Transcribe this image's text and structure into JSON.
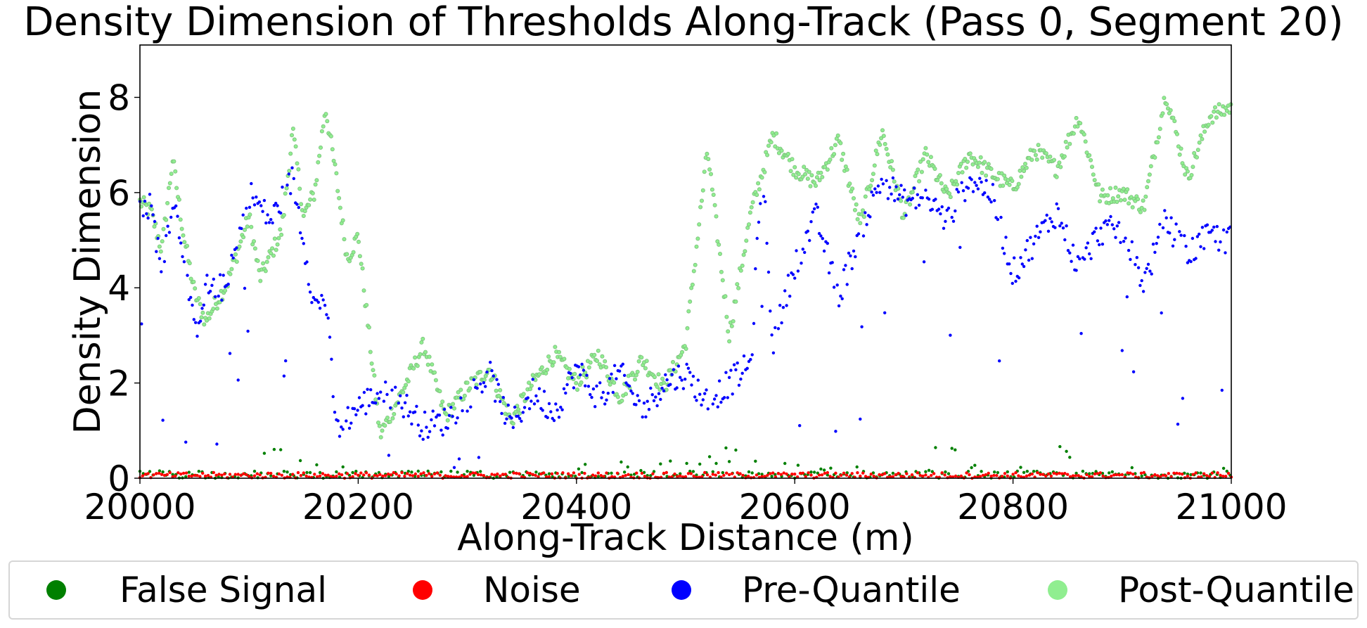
{
  "chart_data": {
    "type": "scatter",
    "title": "Density Dimension of Thresholds Along-Track (Pass 0, Segment 20)",
    "xlabel": "Along-Track Distance (m)",
    "ylabel": "Density Dimension",
    "xlim": [
      20000,
      21000
    ],
    "ylim": [
      0,
      9.1
    ],
    "xticks": [
      20000,
      20200,
      20400,
      20600,
      20800,
      21000
    ],
    "xtick_labels": [
      "20000",
      "20200",
      "20400",
      "20600",
      "20800",
      "21000"
    ],
    "yticks": [
      0,
      2,
      4,
      6,
      8
    ],
    "ytick_labels": [
      "0",
      "2",
      "4",
      "6",
      "8"
    ],
    "grid": false,
    "legend_position": "bottom",
    "series": [
      {
        "name": "False Signal",
        "color": "#008000",
        "trend": [
          [
            20000,
            0.9
          ],
          [
            20010,
            0.6
          ],
          [
            20050,
            0.2
          ],
          [
            20100,
            0.05
          ],
          [
            20120,
            0.9
          ],
          [
            20140,
            0.7
          ],
          [
            20200,
            0.1
          ],
          [
            20300,
            0.05
          ],
          [
            20400,
            0.3
          ],
          [
            20420,
            0.8
          ],
          [
            20450,
            0.2
          ],
          [
            20540,
            0.7
          ],
          [
            20560,
            0.4
          ],
          [
            20600,
            0.3
          ],
          [
            20660,
            0.3
          ],
          [
            20700,
            0.2
          ],
          [
            20740,
            0.9
          ],
          [
            20760,
            0.3
          ],
          [
            20800,
            0.2
          ],
          [
            20850,
            0.9
          ],
          [
            20900,
            0.3
          ],
          [
            20950,
            0.2
          ],
          [
            20990,
            0.9
          ],
          [
            21000,
            0.6
          ]
        ]
      },
      {
        "name": "Noise",
        "color": "#ff0000",
        "trend": [
          [
            20000,
            0.05
          ],
          [
            20500,
            0.05
          ],
          [
            21000,
            0.05
          ]
        ]
      },
      {
        "name": "Pre-Quantile",
        "color": "#0000ff",
        "trend": [
          [
            20000,
            5.6
          ],
          [
            20010,
            5.7
          ],
          [
            20020,
            4.4
          ],
          [
            20030,
            5.9
          ],
          [
            20040,
            4.8
          ],
          [
            20050,
            3.0
          ],
          [
            20060,
            4.0
          ],
          [
            20080,
            4.0
          ],
          [
            20100,
            6.0
          ],
          [
            20120,
            5.4
          ],
          [
            20140,
            6.3
          ],
          [
            20150,
            5.0
          ],
          [
            20160,
            3.6
          ],
          [
            20170,
            3.8
          ],
          [
            20180,
            1.0
          ],
          [
            20200,
            1.5
          ],
          [
            20220,
            1.8
          ],
          [
            20240,
            1.6
          ],
          [
            20260,
            1.1
          ],
          [
            20280,
            1.2
          ],
          [
            20300,
            1.7
          ],
          [
            20320,
            2.2
          ],
          [
            20340,
            1.1
          ],
          [
            20360,
            1.8
          ],
          [
            20380,
            1.4
          ],
          [
            20400,
            2.3
          ],
          [
            20420,
            1.7
          ],
          [
            20440,
            2.2
          ],
          [
            20460,
            1.4
          ],
          [
            20480,
            2.0
          ],
          [
            20500,
            2.2
          ],
          [
            20520,
            1.6
          ],
          [
            20540,
            2.0
          ],
          [
            20560,
            2.4
          ],
          [
            20570,
            6.7
          ],
          [
            20580,
            2.8
          ],
          [
            20600,
            4.5
          ],
          [
            20620,
            5.5
          ],
          [
            20640,
            3.8
          ],
          [
            20660,
            5.2
          ],
          [
            20680,
            6.3
          ],
          [
            20700,
            5.8
          ],
          [
            20720,
            5.9
          ],
          [
            20740,
            5.4
          ],
          [
            20760,
            6.3
          ],
          [
            20780,
            6.0
          ],
          [
            20800,
            4.3
          ],
          [
            20820,
            5.0
          ],
          [
            20840,
            5.6
          ],
          [
            20860,
            4.4
          ],
          [
            20880,
            5.2
          ],
          [
            20900,
            5.2
          ],
          [
            20920,
            4.1
          ],
          [
            20940,
            5.4
          ],
          [
            20960,
            4.7
          ],
          [
            20980,
            5.1
          ],
          [
            21000,
            5.0
          ]
        ]
      },
      {
        "name": "Post-Quantile",
        "color": "#90ee90",
        "trend": [
          [
            20000,
            5.8
          ],
          [
            20010,
            5.6
          ],
          [
            20020,
            4.8
          ],
          [
            20030,
            6.7
          ],
          [
            20040,
            5.1
          ],
          [
            20050,
            3.9
          ],
          [
            20060,
            3.3
          ],
          [
            20080,
            4.1
          ],
          [
            20100,
            5.5
          ],
          [
            20110,
            4.2
          ],
          [
            20130,
            5.2
          ],
          [
            20140,
            7.3
          ],
          [
            20150,
            5.5
          ],
          [
            20160,
            6.0
          ],
          [
            20170,
            7.8
          ],
          [
            20180,
            6.3
          ],
          [
            20190,
            4.6
          ],
          [
            20200,
            5.1
          ],
          [
            20220,
            0.9
          ],
          [
            20240,
            1.8
          ],
          [
            20260,
            2.8
          ],
          [
            20280,
            1.3
          ],
          [
            20300,
            1.9
          ],
          [
            20320,
            2.3
          ],
          [
            20340,
            1.2
          ],
          [
            20360,
            2.0
          ],
          [
            20380,
            2.6
          ],
          [
            20400,
            2.0
          ],
          [
            20420,
            2.6
          ],
          [
            20440,
            1.7
          ],
          [
            20460,
            2.5
          ],
          [
            20480,
            1.9
          ],
          [
            20500,
            2.8
          ],
          [
            20520,
            6.9
          ],
          [
            20540,
            3.0
          ],
          [
            20560,
            5.6
          ],
          [
            20580,
            7.2
          ],
          [
            20600,
            6.5
          ],
          [
            20620,
            6.2
          ],
          [
            20640,
            7.1
          ],
          [
            20660,
            5.3
          ],
          [
            20680,
            7.3
          ],
          [
            20700,
            5.5
          ],
          [
            20720,
            6.8
          ],
          [
            20740,
            5.9
          ],
          [
            20760,
            6.8
          ],
          [
            20780,
            6.4
          ],
          [
            20800,
            6.1
          ],
          [
            20820,
            6.9
          ],
          [
            20840,
            6.5
          ],
          [
            20860,
            7.6
          ],
          [
            20880,
            5.9
          ],
          [
            20900,
            6.0
          ],
          [
            20920,
            5.7
          ],
          [
            20940,
            8.1
          ],
          [
            20960,
            6.3
          ],
          [
            20980,
            7.6
          ],
          [
            21000,
            7.8
          ]
        ]
      }
    ]
  }
}
